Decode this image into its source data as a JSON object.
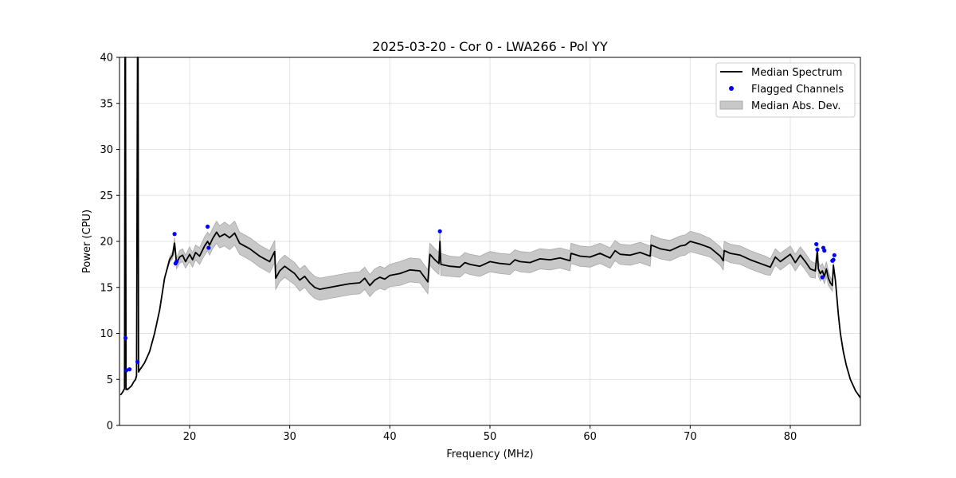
{
  "chart_data": {
    "type": "line",
    "title": "2025-03-20 - Cor 0 - LWA266 - Pol YY",
    "xlabel": "Frequency (MHz)",
    "ylabel": "Power (CPU)",
    "xlim": [
      13.0,
      87.0
    ],
    "ylim": [
      0,
      40
    ],
    "xticks": [
      20,
      30,
      40,
      50,
      60,
      70,
      80
    ],
    "yticks": [
      0,
      5,
      10,
      15,
      20,
      25,
      30,
      35,
      40
    ],
    "grid": true,
    "legend_position": "top-right",
    "legend": [
      {
        "label": "Median Spectrum",
        "kind": "line",
        "color": "#000000"
      },
      {
        "label": "Flagged Channels",
        "kind": "marker",
        "color": "#0000ff"
      },
      {
        "label": "Median Abs. Dev.",
        "kind": "band",
        "color": "#c8c8c8"
      }
    ],
    "series": [
      {
        "name": "Median Spectrum",
        "kind": "line",
        "color": "#000000",
        "x": [
          13.1,
          13.3,
          13.5,
          13.55,
          13.6,
          13.65,
          13.7,
          13.8,
          14.0,
          14.2,
          14.4,
          14.6,
          14.7,
          14.8,
          14.85,
          14.9,
          15.0,
          15.2,
          15.5,
          16.0,
          16.5,
          17.0,
          17.5,
          18.0,
          18.3,
          18.5,
          18.7,
          19.0,
          19.3,
          19.6,
          20.0,
          20.3,
          20.6,
          21.0,
          21.5,
          21.8,
          22.0,
          22.3,
          22.7,
          23.0,
          23.5,
          24.0,
          24.5,
          25.0,
          25.5,
          26.0,
          26.5,
          27.0,
          27.5,
          28.0,
          28.5,
          28.6,
          29.0,
          29.5,
          30.0,
          30.5,
          31.0,
          31.5,
          32.0,
          32.5,
          33.0,
          34.0,
          35.0,
          36.0,
          37.0,
          37.5,
          38.0,
          38.5,
          39.0,
          39.5,
          40.0,
          41.0,
          42.0,
          43.0,
          43.8,
          44.0,
          44.5,
          44.9,
          45.0,
          45.1,
          46.0,
          47.0,
          47.5,
          48.0,
          49.0,
          50.0,
          51.0,
          52.0,
          52.5,
          53.0,
          54.0,
          55.0,
          56.0,
          57.0,
          58.0,
          58.1,
          59.0,
          60.0,
          61.0,
          62.0,
          62.5,
          63.0,
          64.0,
          65.0,
          66.0,
          66.1,
          67.0,
          68.0,
          69.0,
          69.5,
          70.0,
          71.0,
          72.0,
          73.0,
          73.3,
          73.4,
          74.0,
          75.0,
          76.0,
          77.0,
          77.5,
          78.0,
          78.5,
          79.0,
          80.0,
          80.5,
          81.0,
          81.5,
          82.0,
          82.5,
          82.7,
          82.8,
          83.0,
          83.2,
          83.4,
          83.6,
          83.8,
          84.0,
          84.2,
          84.3,
          84.5,
          84.8,
          85.0,
          85.3,
          85.6,
          86.0,
          86.5,
          87.0
        ],
        "y": [
          3.3,
          3.6,
          4.0,
          40.0,
          40.0,
          3.9,
          4.0,
          3.9,
          4.1,
          4.3,
          4.7,
          5.0,
          5.4,
          40.0,
          40.0,
          5.8,
          6.0,
          6.3,
          6.8,
          8.0,
          10.0,
          12.5,
          16.0,
          18.0,
          18.5,
          19.8,
          17.6,
          18.3,
          18.5,
          17.8,
          18.6,
          18.0,
          18.8,
          18.4,
          19.5,
          20.0,
          19.6,
          20.3,
          21.0,
          20.5,
          20.8,
          20.4,
          20.9,
          19.8,
          19.5,
          19.2,
          18.8,
          18.4,
          18.1,
          17.8,
          18.9,
          16.0,
          16.8,
          17.3,
          16.9,
          16.5,
          15.8,
          16.2,
          15.5,
          15.0,
          14.8,
          15.0,
          15.2,
          15.4,
          15.5,
          16.0,
          15.2,
          15.8,
          16.1,
          15.9,
          16.3,
          16.5,
          16.9,
          16.8,
          15.6,
          18.6,
          18.0,
          17.6,
          20.0,
          17.5,
          17.3,
          17.2,
          17.7,
          17.5,
          17.3,
          17.8,
          17.6,
          17.5,
          18.0,
          17.8,
          17.7,
          18.1,
          18.0,
          18.2,
          17.9,
          18.7,
          18.4,
          18.3,
          18.7,
          18.2,
          19.0,
          18.6,
          18.5,
          18.8,
          18.4,
          19.6,
          19.2,
          19.0,
          19.5,
          19.6,
          20.0,
          19.7,
          19.3,
          18.4,
          17.9,
          19.0,
          18.7,
          18.5,
          18.0,
          17.6,
          17.4,
          17.2,
          18.3,
          17.8,
          18.6,
          17.7,
          18.5,
          17.8,
          17.0,
          16.8,
          19.0,
          17.0,
          16.5,
          16.8,
          16.2,
          17.0,
          16.0,
          15.5,
          15.2,
          17.4,
          15.8,
          12.0,
          10.0,
          8.0,
          6.5,
          5.0,
          3.8,
          3.0
        ],
        "band": [
          0,
          0,
          0,
          0,
          0,
          0,
          0,
          0,
          0,
          0,
          0,
          0,
          0,
          0,
          0,
          0,
          0,
          0,
          0,
          0,
          0,
          0,
          0,
          0.3,
          0.4,
          0.6,
          0.6,
          0.7,
          0.7,
          0.7,
          0.8,
          0.8,
          0.8,
          0.9,
          1.0,
          1.0,
          1.1,
          1.1,
          1.2,
          1.2,
          1.3,
          1.3,
          1.3,
          1.2,
          1.2,
          1.2,
          1.2,
          1.2,
          1.2,
          1.2,
          1.2,
          1.2,
          1.2,
          1.2,
          1.2,
          1.2,
          1.2,
          1.2,
          1.2,
          1.2,
          1.2,
          1.2,
          1.2,
          1.2,
          1.2,
          1.2,
          1.2,
          1.2,
          1.2,
          1.2,
          1.2,
          1.3,
          1.3,
          1.3,
          1.3,
          1.2,
          1.2,
          1.2,
          1.2,
          1.2,
          1.1,
          1.1,
          1.1,
          1.1,
          1.1,
          1.1,
          1.1,
          1.1,
          1.1,
          1.1,
          1.1,
          1.1,
          1.1,
          1.1,
          1.1,
          1.1,
          1.1,
          1.1,
          1.1,
          1.1,
          1.1,
          1.1,
          1.1,
          1.1,
          1.1,
          1.1,
          1.1,
          1.1,
          1.1,
          1.1,
          1.1,
          1.1,
          1.0,
          1.0,
          1.0,
          1.0,
          1.0,
          1.0,
          1.0,
          1.0,
          1.0,
          0.9,
          0.9,
          0.9,
          0.9,
          0.9,
          0.9,
          0.9,
          0.9,
          0.8,
          0.8,
          0.8,
          0.8,
          0.8,
          0.8,
          0.8,
          0.8,
          0.6,
          0.6,
          0.3,
          0,
          0,
          0,
          0,
          0,
          0,
          0,
          0
        ]
      },
      {
        "name": "Flagged Channels",
        "kind": "scatter",
        "color": "#0000ff",
        "x": [
          13.6,
          13.7,
          14.0,
          14.8,
          18.5,
          18.6,
          18.7,
          21.8,
          21.9,
          45.0,
          82.6,
          82.7,
          83.2,
          83.3,
          83.4,
          84.2,
          84.3,
          84.4
        ],
        "y": [
          9.5,
          6.0,
          6.1,
          6.9,
          20.8,
          17.6,
          17.8,
          21.6,
          19.3,
          21.1,
          19.7,
          19.1,
          16.1,
          19.3,
          19.0,
          17.9,
          18.0,
          18.5
        ]
      }
    ]
  }
}
